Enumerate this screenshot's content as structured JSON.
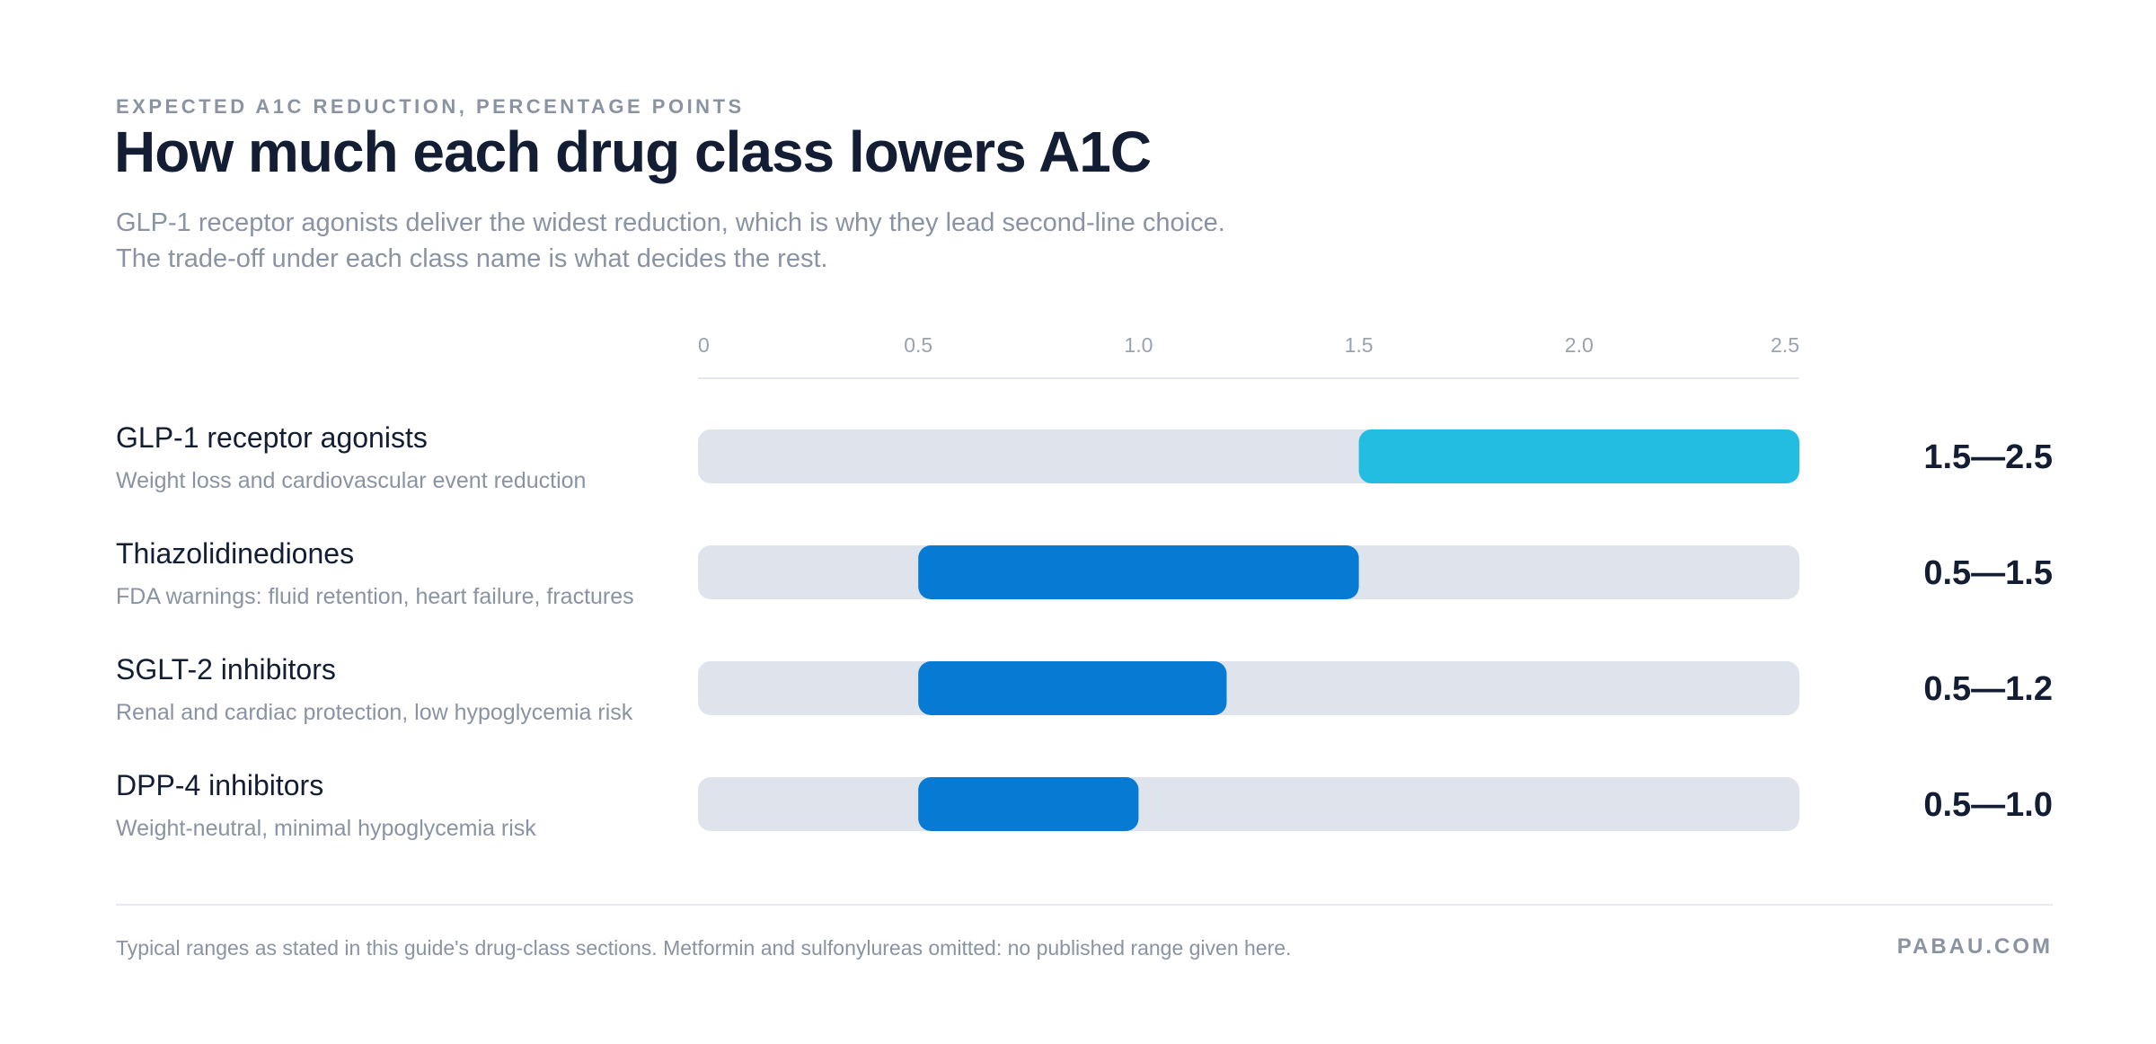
{
  "header": {
    "eyebrow": "EXPECTED A1C REDUCTION, PERCENTAGE POINTS",
    "title": "How much each drug class lowers A1C",
    "subtitle_line1": "GLP-1 receptor agonists deliver the widest reduction, which is why they lead second-line choice.",
    "subtitle_line2": "The trade-off under each class name is what decides the rest."
  },
  "chart_data": {
    "type": "bar",
    "orientation": "horizontal-range",
    "xlim": [
      0,
      2.5
    ],
    "x_ticks": [
      "0",
      "0.5",
      "1.0",
      "1.5",
      "2.0",
      "2.5"
    ],
    "grid": false,
    "track_color": "#dfe3ec",
    "rows": [
      {
        "name": "GLP-1 receptor agonists",
        "description": "Weight loss and cardiovascular event reduction",
        "low": 1.5,
        "high": 2.5,
        "label": "1.5—2.5",
        "color": "#23bde2"
      },
      {
        "name": "Thiazolidinediones",
        "description": "FDA warnings: fluid retention, heart failure, fractures",
        "low": 0.5,
        "high": 1.5,
        "label": "0.5—1.5",
        "color": "#077bd4"
      },
      {
        "name": "SGLT-2 inhibitors",
        "description": "Renal and cardiac protection, low hypoglycemia risk",
        "low": 0.5,
        "high": 1.2,
        "label": "0.5—1.2",
        "color": "#077bd4"
      },
      {
        "name": "DPP-4 inhibitors",
        "description": "Weight-neutral, minimal hypoglycemia risk",
        "low": 0.5,
        "high": 1.0,
        "label": "0.5—1.0",
        "color": "#077bd4"
      }
    ]
  },
  "footer": {
    "note": "Typical ranges as stated in this guide's drug-class sections. Metformin and sulfonylureas omitted: no published range given here.",
    "brand": "PABAU.COM"
  }
}
